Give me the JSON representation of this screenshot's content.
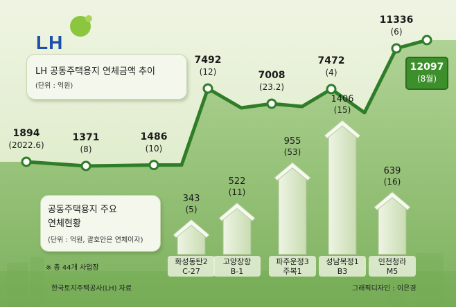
{
  "logo": {
    "text": "LH"
  },
  "title": "LH 공동주택용지 연체금액 추이",
  "title_unit": "(단위 : 억원)",
  "subchart_title_line1": "공동주택용지 주요",
  "subchart_title_line2": "연체현황",
  "subchart_unit": "(단위 : 억원, 괄호안은 연체이자)",
  "note": "※ 총 44개 사업장",
  "source": "한국토지주택공사(LH) 자료",
  "credit": "그래픽디자인 : 이은경",
  "colors": {
    "line": "#2f7d28",
    "callout": "#3c8f2a",
    "logo_blue": "#1e4fa8",
    "logo_green": "#8cc63f"
  },
  "chart_data": [
    {
      "type": "line",
      "points": [
        {
          "value": "1894",
          "sub": "(2022.6)"
        },
        {
          "value": "1371",
          "sub": "(8)"
        },
        {
          "value": "1486",
          "sub": "(10)"
        },
        {
          "value": "7492",
          "sub": "(12)"
        },
        {
          "value": "7008",
          "sub": "(23.2)"
        },
        {
          "value": "7472",
          "sub": "(4)"
        },
        {
          "value": "11336",
          "sub": "(6)"
        },
        {
          "value": "12097",
          "sub": "(8월)"
        }
      ],
      "values": [
        1894,
        1371,
        1486,
        7492,
        7008,
        7472,
        11336,
        12097
      ]
    },
    {
      "type": "bar",
      "categories": [
        "화성동탄2 C-27",
        "고양장항 B-1",
        "파주운정3 주복1",
        "성남복정1 B3",
        "인천청라 M5"
      ],
      "cat_line1": [
        "화성동탄2",
        "고양장항",
        "파주운정3",
        "성남복정1",
        "인천청라"
      ],
      "cat_line2": [
        "C-27",
        "B-1",
        "주복1",
        "B3",
        "M5"
      ],
      "values": [
        343,
        522,
        955,
        1406,
        639
      ],
      "interest": [
        5,
        11,
        53,
        15,
        16
      ],
      "value_labels": [
        "343",
        "522",
        "955",
        "1406",
        "639"
      ],
      "interest_labels": [
        "(5)",
        "(11)",
        "(53)",
        "(15)",
        "(16)"
      ]
    }
  ]
}
